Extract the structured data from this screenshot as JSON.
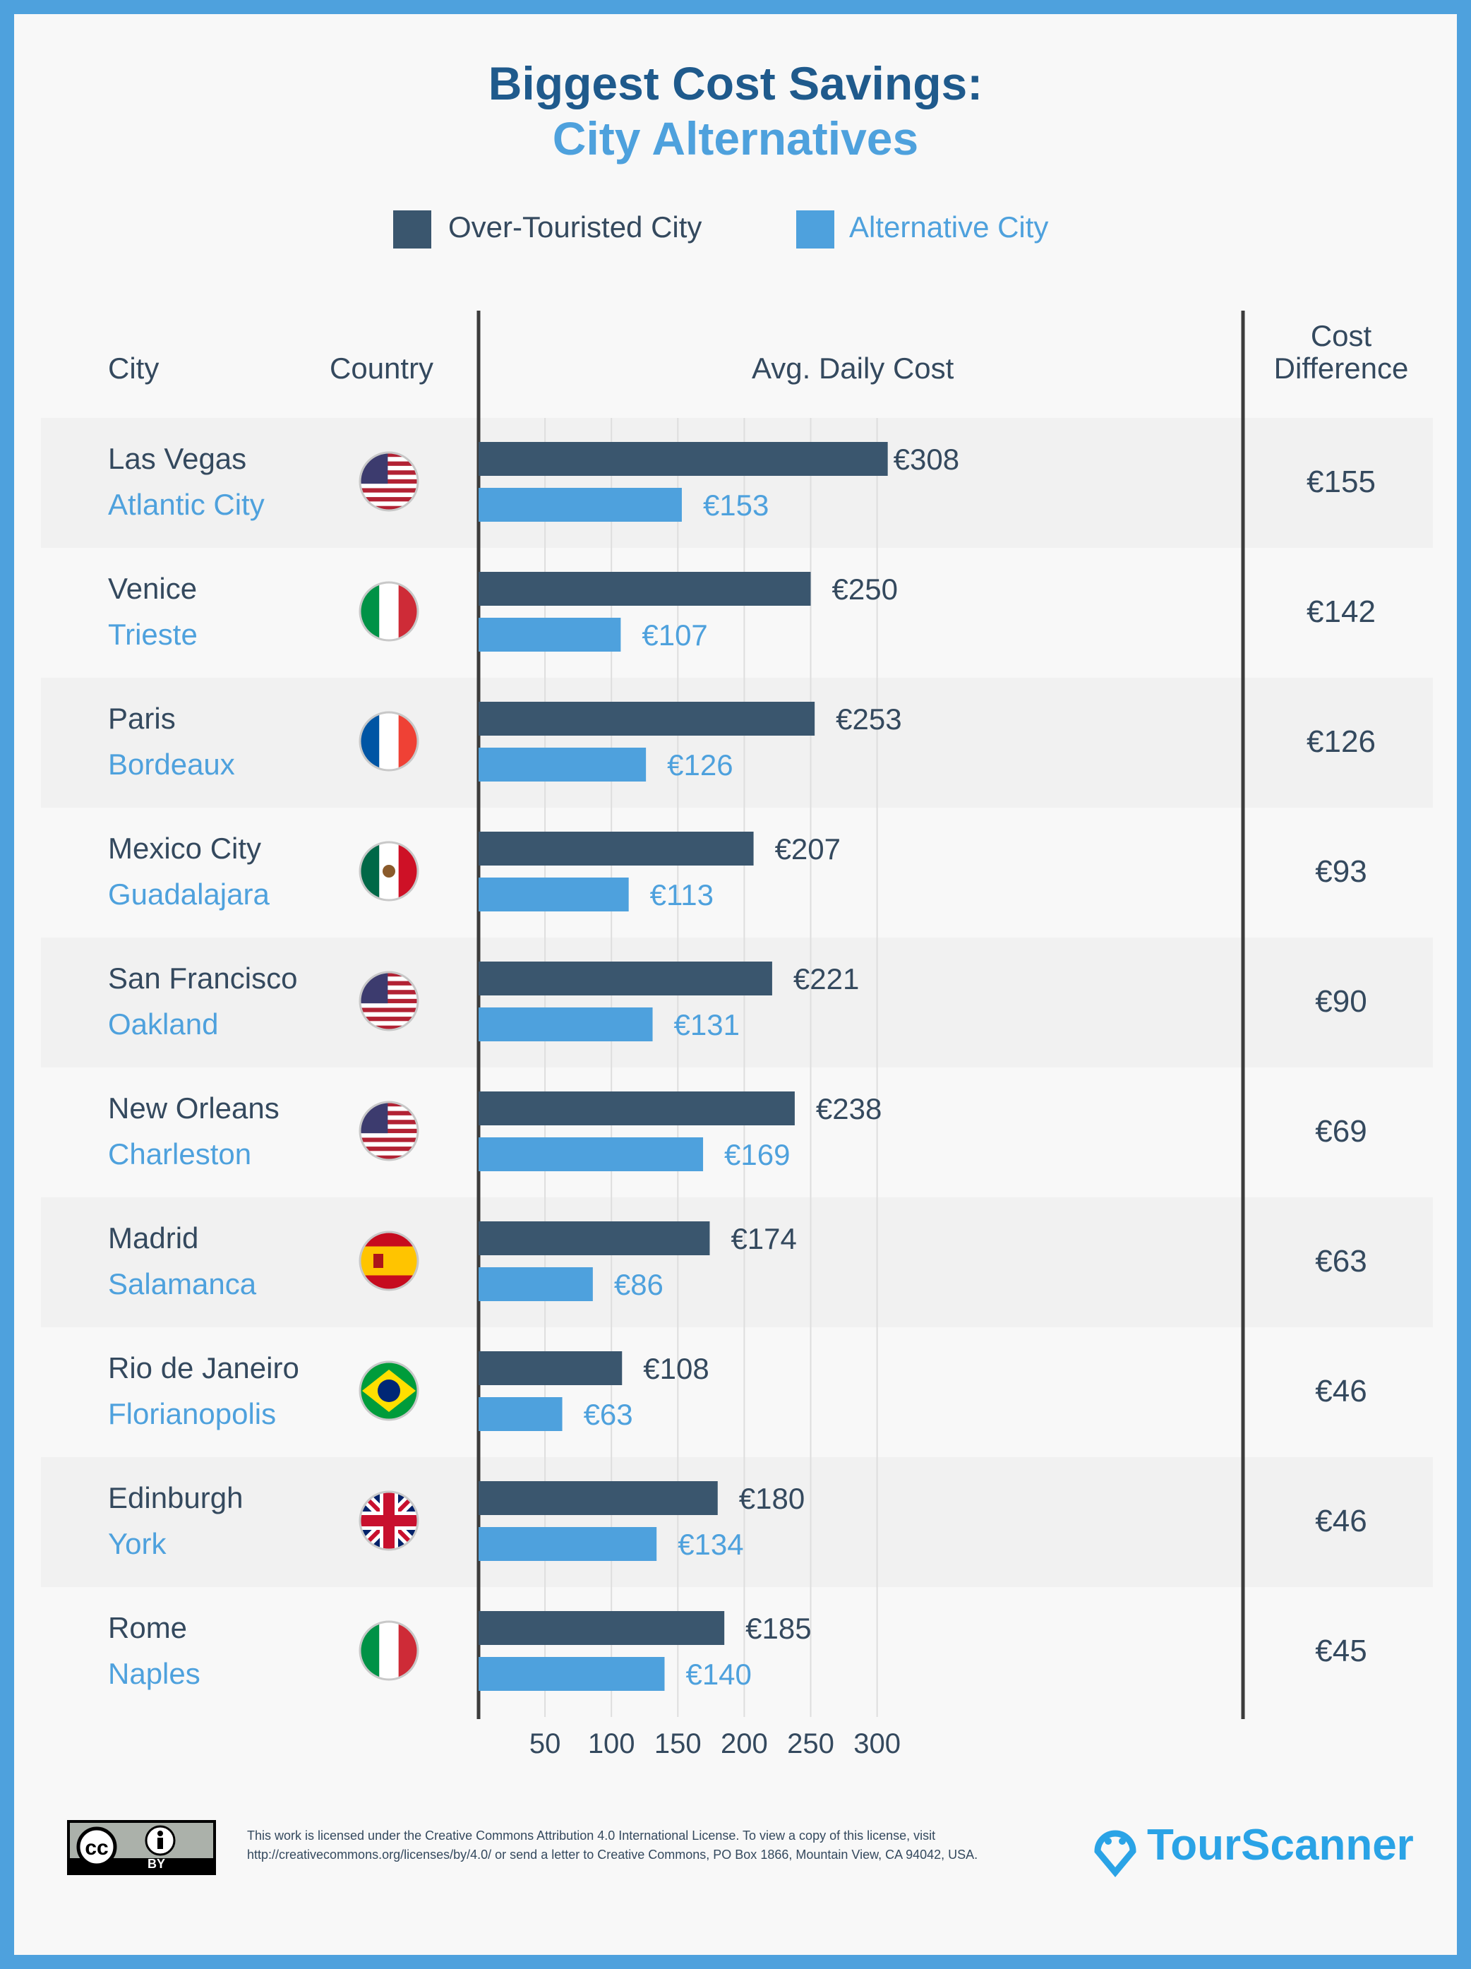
{
  "title": {
    "line1": "Biggest Cost Savings:",
    "line2": "City Alternatives"
  },
  "legend": [
    {
      "label": "Over-Touristed City",
      "color": "#3a566e"
    },
    {
      "label": "Alternative City",
      "color": "#4ea1dd"
    }
  ],
  "headers": {
    "city": "City",
    "country": "Country",
    "avg": "Avg. Daily Cost",
    "diff_line1": "Cost",
    "diff_line2": "Difference"
  },
  "rows": [
    {
      "city": "Las Vegas",
      "alt": "Atlantic City",
      "country_icon": "flag-usa-icon",
      "diff": "€155"
    },
    {
      "city": "Venice",
      "alt": "Trieste",
      "country_icon": "flag-italy-icon",
      "diff": "€142"
    },
    {
      "city": "Paris",
      "alt": "Bordeaux",
      "country_icon": "flag-france-icon",
      "diff": "€126"
    },
    {
      "city": "Mexico City",
      "alt": "Guadalajara",
      "country_icon": "flag-mexico-icon",
      "diff": "€93"
    },
    {
      "city": "San Francisco",
      "alt": "Oakland",
      "country_icon": "flag-usa-icon",
      "diff": "€90"
    },
    {
      "city": "New Orleans",
      "alt": "Charleston",
      "country_icon": "flag-usa-icon",
      "diff": "€69"
    },
    {
      "city": "Madrid",
      "alt": "Salamanca",
      "country_icon": "flag-spain-icon",
      "diff": "€63"
    },
    {
      "city": "Rio de Janeiro",
      "alt": "Florianopolis",
      "country_icon": "flag-brazil-icon",
      "diff": "€46"
    },
    {
      "city": "Edinburgh",
      "alt": "York",
      "country_icon": "flag-uk-icon",
      "diff": "€46"
    },
    {
      "city": "Rome",
      "alt": "Naples",
      "country_icon": "flag-italy-icon",
      "diff": "€45"
    }
  ],
  "chart_data": {
    "type": "bar",
    "orientation": "horizontal",
    "categories": [
      "Las Vegas / Atlantic City",
      "Venice / Trieste",
      "Paris / Bordeaux",
      "Mexico City / Guadalajara",
      "San Francisco / Oakland",
      "New Orleans / Charleston",
      "Madrid / Salamanca",
      "Rio de Janeiro / Florianopolis",
      "Edinburgh / York",
      "Rome / Naples"
    ],
    "series": [
      {
        "name": "Over-Touristed City",
        "color": "#3a566e",
        "values": [
          308,
          250,
          253,
          207,
          221,
          238,
          174,
          108,
          180,
          185
        ]
      },
      {
        "name": "Alternative City",
        "color": "#4ea1dd",
        "values": [
          153,
          107,
          126,
          113,
          131,
          169,
          86,
          63,
          134,
          140
        ]
      }
    ],
    "value_prefix": "€",
    "xlabel": "Avg. Daily Cost",
    "xlim": [
      0,
      345
    ],
    "xticks": [
      50,
      100,
      150,
      200,
      250,
      300
    ],
    "grid": true,
    "legend": "top"
  },
  "footer": {
    "license_line1": "This work is licensed under the Creative Commons Attribution 4.0 International License. To view a copy of this license, visit",
    "license_line2": "http://creativecommons.org/licenses/by/4.0/ or send a letter to Creative Commons, PO Box 1866, Mountain View, CA 94042, USA.",
    "cc_badge": "cc-by-badge",
    "cc_by": "BY",
    "logo": "TourScanner"
  }
}
